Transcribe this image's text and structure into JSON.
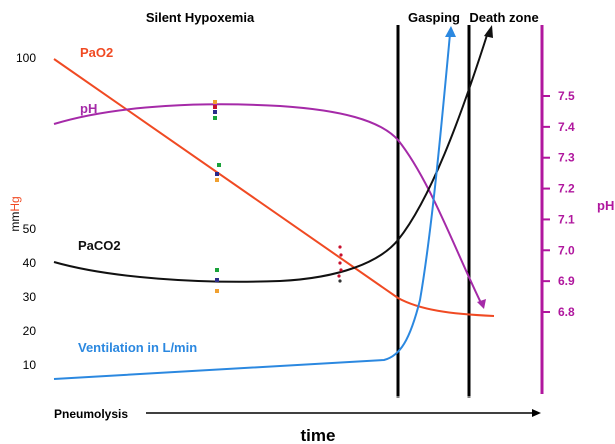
{
  "chart_data": {
    "type": "line",
    "title": "",
    "regions": [
      "Silent Hypoxemia",
      "Gasping",
      "Death zone"
    ],
    "x_label": "time",
    "x_arrow_label": "Pneumolysis",
    "y_left_label_parts": [
      "mm",
      "Hg"
    ],
    "y_left_ticks": [
      10,
      20,
      30,
      40,
      50,
      100
    ],
    "y_right_label": "pH",
    "y_right_ticks": [
      "6.8",
      "6.9",
      "7.0",
      "7.1",
      "7.2",
      "7.3",
      "7.4",
      "7.5"
    ],
    "colors": {
      "PaO2": "#f04a23",
      "pH": "#a52aa8",
      "PaCO2": "#111111",
      "Ventilation": "#2b88e0",
      "right_axis": "#b0179e",
      "left_label_accent": "#f04a23",
      "marker_green": "#1aa33a",
      "marker_orange": "#f0a030",
      "marker_navy": "#2a2a8a",
      "marker_red": "#c8102e"
    },
    "series": [
      {
        "name": "PaO2",
        "values": [
          100,
          96,
          90,
          84,
          78,
          72,
          66,
          60,
          54,
          48,
          42,
          36,
          30,
          27,
          25,
          25
        ]
      },
      {
        "name": "pH",
        "values": [
          7.41,
          7.44,
          7.45,
          7.46,
          7.46,
          7.45,
          7.42,
          7.37,
          7.18,
          6.93,
          6.82
        ]
      },
      {
        "name": "PaCO2",
        "values": [
          40,
          37,
          35,
          35,
          36,
          38,
          41,
          44,
          60,
          80,
          100
        ]
      },
      {
        "name": "Ventilation in L/min",
        "values": [
          5,
          6,
          7,
          8,
          9,
          10,
          11,
          30,
          80,
          100
        ]
      }
    ]
  }
}
